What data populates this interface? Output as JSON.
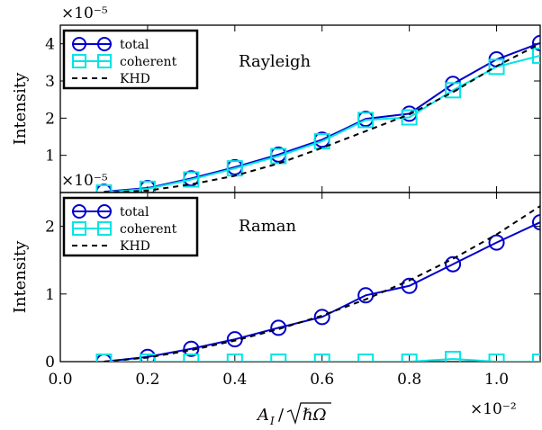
{
  "chart_data": [
    {
      "type": "line",
      "title": "Rayleigh",
      "ylabel": "Intensity",
      "y_multiplier": "×10⁻⁵",
      "xlim": [
        0.0,
        1.1
      ],
      "ylim": [
        0,
        4.5
      ],
      "yticks": [
        "1",
        "2",
        "3",
        "4"
      ],
      "legend_position": "top-left",
      "series": [
        {
          "name": "total",
          "color": "#0000cc",
          "marker": "circle",
          "x": [
            0.1,
            0.2,
            0.3,
            0.4,
            0.5,
            0.6,
            0.7,
            0.8,
            0.9,
            1.0,
            1.1
          ],
          "y": [
            0.02,
            0.12,
            0.38,
            0.68,
            1.02,
            1.42,
            1.98,
            2.12,
            2.92,
            3.58,
            4.02
          ]
        },
        {
          "name": "coherent",
          "color": "#00e5e5",
          "marker": "square",
          "x": [
            0.1,
            0.2,
            0.3,
            0.4,
            0.5,
            0.6,
            0.7,
            0.8,
            0.9,
            1.0,
            1.1
          ],
          "y": [
            0.0,
            0.1,
            0.35,
            0.65,
            0.98,
            1.38,
            1.95,
            2.02,
            2.75,
            3.38,
            3.68
          ]
        },
        {
          "name": "KHD",
          "color": "#000000",
          "marker": "none",
          "dash": true,
          "x": [
            0.1,
            0.2,
            0.3,
            0.4,
            0.5,
            0.6,
            0.7,
            0.8,
            0.9,
            1.0,
            1.1
          ],
          "y": [
            0.0,
            0.05,
            0.22,
            0.45,
            0.78,
            1.2,
            1.65,
            2.1,
            2.7,
            3.4,
            4.0
          ]
        }
      ]
    },
    {
      "type": "line",
      "title": "Raman",
      "ylabel": "Intensity",
      "y_multiplier": "×10⁻⁵",
      "xlabel_parts": {
        "a": "A",
        "sub": "I",
        "slash": "/",
        "rad": "ℏΩ"
      },
      "x_multiplier": "×10⁻²",
      "xlim": [
        0.0,
        1.1
      ],
      "ylim": [
        0,
        2.5
      ],
      "xticks": [
        "0.0",
        "0.2",
        "0.4",
        "0.6",
        "0.8",
        "1.0"
      ],
      "yticks": [
        "0",
        "1",
        "2"
      ],
      "legend_position": "top-left",
      "series": [
        {
          "name": "total",
          "color": "#0000cc",
          "marker": "circle",
          "x": [
            0.1,
            0.2,
            0.3,
            0.4,
            0.5,
            0.6,
            0.7,
            0.8,
            0.9,
            1.0,
            1.1
          ],
          "y": [
            0.0,
            0.07,
            0.19,
            0.33,
            0.5,
            0.66,
            0.98,
            1.12,
            1.44,
            1.76,
            2.06
          ]
        },
        {
          "name": "coherent",
          "color": "#00e5e5",
          "marker": "square",
          "x": [
            0.1,
            0.2,
            0.3,
            0.4,
            0.5,
            0.6,
            0.7,
            0.8,
            0.9,
            1.0,
            1.1
          ],
          "y": [
            0.0,
            0.0,
            0.0,
            0.0,
            0.0,
            0.0,
            0.0,
            0.0,
            0.04,
            0.0,
            0.0
          ]
        },
        {
          "name": "KHD",
          "color": "#000000",
          "marker": "none",
          "dash": true,
          "x": [
            0.1,
            0.2,
            0.3,
            0.4,
            0.5,
            0.6,
            0.7,
            0.8,
            0.9,
            1.0,
            1.1
          ],
          "y": [
            0.0,
            0.06,
            0.17,
            0.31,
            0.48,
            0.68,
            0.92,
            1.2,
            1.52,
            1.88,
            2.3
          ]
        }
      ]
    }
  ]
}
